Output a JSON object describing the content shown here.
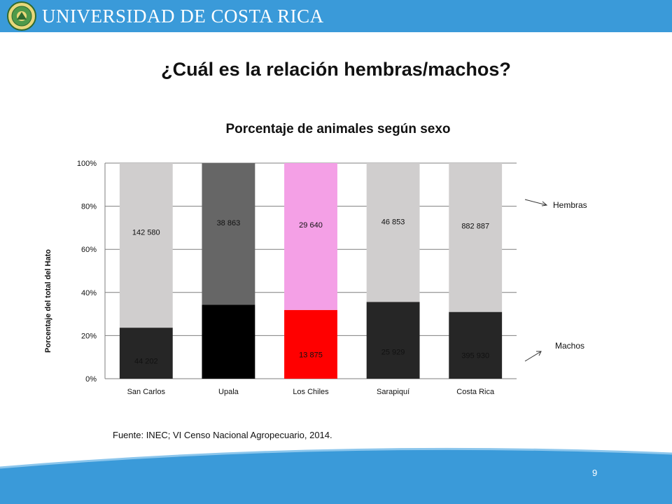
{
  "header": {
    "university_name": "UNIVERSIDAD DE COSTA RICA",
    "logo": "university-seal"
  },
  "slide": {
    "headline": "¿Cuál es la relación hembras/machos?",
    "source": "Fuente: INEC; VI Censo Nacional Agropecuario, 2014.",
    "page_number": "9"
  },
  "colors": {
    "brand_blue": "#3a9ad9",
    "machos_default": "#262626",
    "hembras_default": "#d0cece"
  },
  "chart_data": {
    "type": "bar",
    "stacked": "percent",
    "title": "Porcentaje de animales según sexo",
    "xlabel": "",
    "ylabel": "Porcentaje del total del Hato",
    "ylim": [
      0,
      100
    ],
    "yticks": [
      "0%",
      "20%",
      "40%",
      "60%",
      "80%",
      "100%"
    ],
    "grid": true,
    "categories": [
      "San Carlos",
      "Upala",
      "Los Chiles",
      "Sarapiquí",
      "Costa Rica"
    ],
    "series": [
      {
        "name": "Machos",
        "values": [
          44202,
          20330,
          13875,
          25929,
          395930
        ],
        "labels": [
          "44 202",
          "",
          "13 875",
          "25 929",
          "395 930"
        ],
        "colors": [
          "#262626",
          "#000000",
          "#ff0000",
          "#262626",
          "#262626"
        ]
      },
      {
        "name": "Hembras",
        "values": [
          142580,
          38863,
          29640,
          46853,
          882887
        ],
        "labels": [
          "142 580",
          "38 863",
          "29 640",
          "46 853",
          "882 887"
        ],
        "colors": [
          "#d0cece",
          "#666666",
          "#f4a0e6",
          "#d0cece",
          "#d0cece"
        ]
      }
    ],
    "annotations": [
      "Hembras",
      "Machos"
    ]
  }
}
